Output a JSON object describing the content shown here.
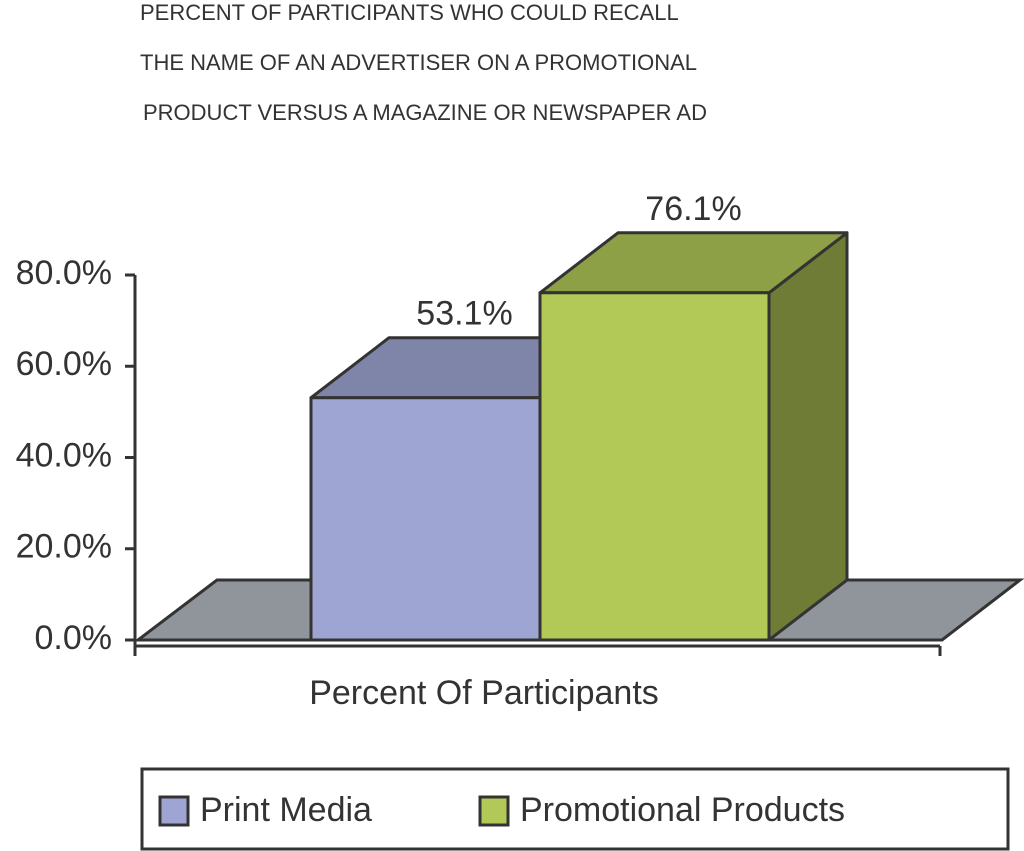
{
  "chart_data": {
    "type": "bar3d",
    "title": [
      "PERCENT OF PARTICIPANTS WHO COULD RECALL",
      "THE NAME OF AN ADVERTISER ON A PROMOTIONAL",
      "PRODUCT VERSUS A MAGAZINE OR NEWSPAPER AD"
    ],
    "categories": [
      "Percent Of Participants"
    ],
    "series": [
      {
        "name": "Print Media",
        "color": "#9fa5d3",
        "values": [
          53.1
        ],
        "value_labels": [
          "53.1%"
        ]
      },
      {
        "name": "Promotional Products",
        "color": "#b2c857",
        "values": [
          76.1
        ],
        "value_labels": [
          "76.1%"
        ]
      }
    ],
    "ylim": [
      0,
      80
    ],
    "yticks": [
      {
        "value": 0,
        "label": "0.0%"
      },
      {
        "value": 20,
        "label": "20.0%"
      },
      {
        "value": 40,
        "label": "40.0%"
      },
      {
        "value": 60,
        "label": "60.0%"
      },
      {
        "value": 80,
        "label": "80.0%"
      }
    ],
    "legend": "bottom"
  }
}
